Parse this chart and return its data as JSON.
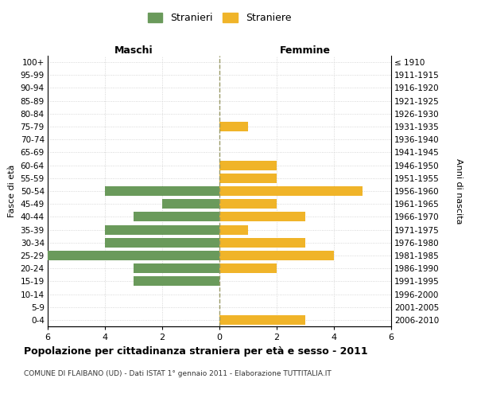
{
  "age_groups": [
    "100+",
    "95-99",
    "90-94",
    "85-89",
    "80-84",
    "75-79",
    "70-74",
    "65-69",
    "60-64",
    "55-59",
    "50-54",
    "45-49",
    "40-44",
    "35-39",
    "30-34",
    "25-29",
    "20-24",
    "15-19",
    "10-14",
    "5-9",
    "0-4"
  ],
  "birth_years": [
    "≤ 1910",
    "1911-1915",
    "1916-1920",
    "1921-1925",
    "1926-1930",
    "1931-1935",
    "1936-1940",
    "1941-1945",
    "1946-1950",
    "1951-1955",
    "1956-1960",
    "1961-1965",
    "1966-1970",
    "1971-1975",
    "1976-1980",
    "1981-1985",
    "1986-1990",
    "1991-1995",
    "1996-2000",
    "2001-2005",
    "2006-2010"
  ],
  "maschi": [
    0,
    0,
    0,
    0,
    0,
    0,
    0,
    0,
    0,
    0,
    4,
    2,
    3,
    4,
    4,
    6,
    3,
    3,
    0,
    0,
    0
  ],
  "femmine": [
    0,
    0,
    0,
    0,
    0,
    1,
    0,
    0,
    2,
    2,
    5,
    2,
    3,
    1,
    3,
    4,
    2,
    0,
    0,
    0,
    3
  ],
  "maschi_color": "#6a9a5b",
  "femmine_color": "#f0b429",
  "title": "Popolazione per cittadinanza straniera per età e sesso - 2011",
  "subtitle": "COMUNE DI FLAIBANO (UD) - Dati ISTAT 1° gennaio 2011 - Elaborazione TUTTITALIA.IT",
  "xlabel_left": "Maschi",
  "xlabel_right": "Femmine",
  "ylabel_left": "Fasce di età",
  "ylabel_right": "Anni di nascita",
  "legend_stranieri": "Stranieri",
  "legend_straniere": "Straniere",
  "xlim": 6,
  "background_color": "#ffffff",
  "grid_color": "#cccccc"
}
